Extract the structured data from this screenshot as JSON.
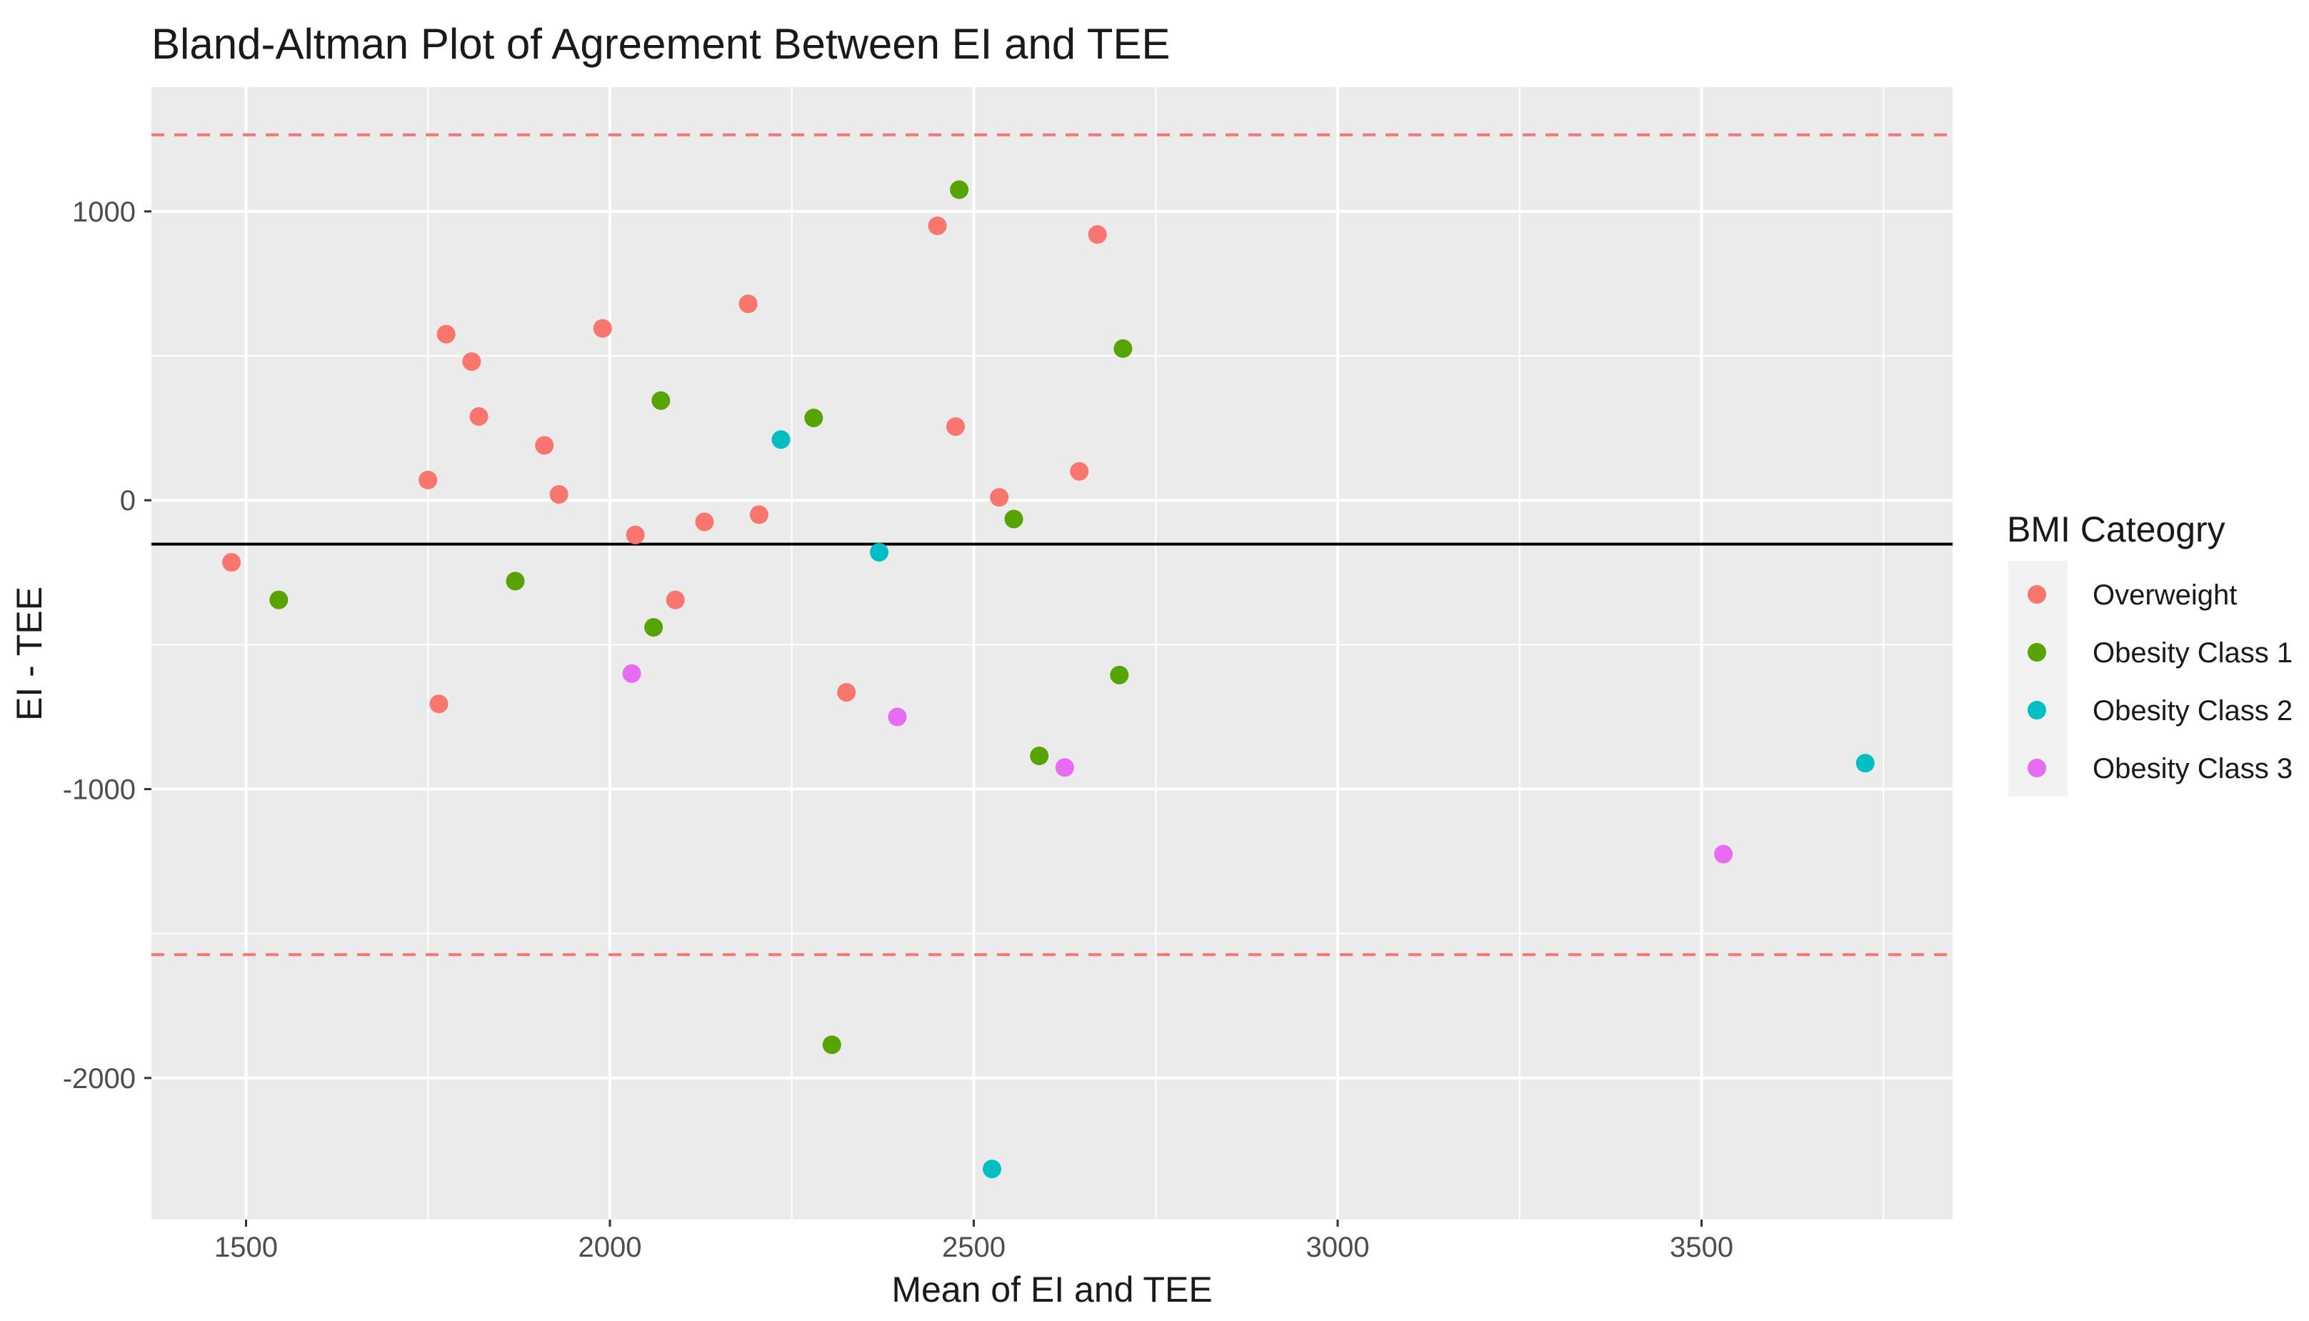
{
  "chart_data": {
    "type": "scatter",
    "title": "Bland-Altman Plot of Agreement Between EI and TEE",
    "xlabel": "Mean of EI and TEE",
    "ylabel": "EI - TEE",
    "xlim": [
      1370,
      3845
    ],
    "ylim": [
      -2490,
      1430
    ],
    "x_ticks": [
      1500,
      2000,
      2500,
      3000,
      3500
    ],
    "y_ticks": [
      -2000,
      -1000,
      0,
      1000
    ],
    "x_tick_labels": [
      "1500",
      "2000",
      "2500",
      "3000",
      "3500"
    ],
    "y_tick_labels": [
      "-2000",
      "-1000",
      "0",
      "1000"
    ],
    "x_minor_ticks": [
      1750,
      2250,
      2750,
      3250,
      3750
    ],
    "y_minor_ticks": [
      -1500,
      -500,
      500
    ],
    "grid": true,
    "background": "#ebebeb",
    "mean_line": {
      "y": -152,
      "color": "#000000"
    },
    "limit_lines": [
      {
        "y": 1265,
        "color": "#f8766d",
        "style": "dashed"
      },
      {
        "y": -1573,
        "color": "#f8766d",
        "style": "dashed"
      }
    ],
    "legend": {
      "title": "BMI Cateogry",
      "position": "right"
    },
    "series": [
      {
        "name": "Overweight",
        "color": "#f8766d",
        "points": [
          [
            1480,
            -215
          ],
          [
            1750,
            70
          ],
          [
            1765,
            -705
          ],
          [
            1775,
            575
          ],
          [
            1810,
            480
          ],
          [
            1820,
            290
          ],
          [
            1910,
            190
          ],
          [
            1930,
            20
          ],
          [
            1990,
            595
          ],
          [
            2035,
            -120
          ],
          [
            2090,
            -345
          ],
          [
            2130,
            -75
          ],
          [
            2190,
            680
          ],
          [
            2205,
            -50
          ],
          [
            2325,
            -665
          ],
          [
            2450,
            950
          ],
          [
            2475,
            255
          ],
          [
            2535,
            10
          ],
          [
            2645,
            100
          ],
          [
            2670,
            920
          ]
        ]
      },
      {
        "name": "Obesity Class 1",
        "color": "#57a300",
        "points": [
          [
            1545,
            -345
          ],
          [
            1870,
            -280
          ],
          [
            2060,
            -440
          ],
          [
            2070,
            345
          ],
          [
            2280,
            285
          ],
          [
            2305,
            -1885
          ],
          [
            2480,
            1075
          ],
          [
            2555,
            -65
          ],
          [
            2590,
            -885
          ],
          [
            2700,
            -605
          ],
          [
            2705,
            525
          ]
        ]
      },
      {
        "name": "Obesity Class 2",
        "color": "#00bfc4",
        "points": [
          [
            2235,
            210
          ],
          [
            2370,
            -180
          ],
          [
            2525,
            -2315
          ],
          [
            3725,
            -910
          ]
        ]
      },
      {
        "name": "Obesity Class 3",
        "color": "#e76bf3",
        "points": [
          [
            2030,
            -600
          ],
          [
            2395,
            -750
          ],
          [
            2625,
            -925
          ],
          [
            3530,
            -1225
          ]
        ]
      }
    ]
  }
}
